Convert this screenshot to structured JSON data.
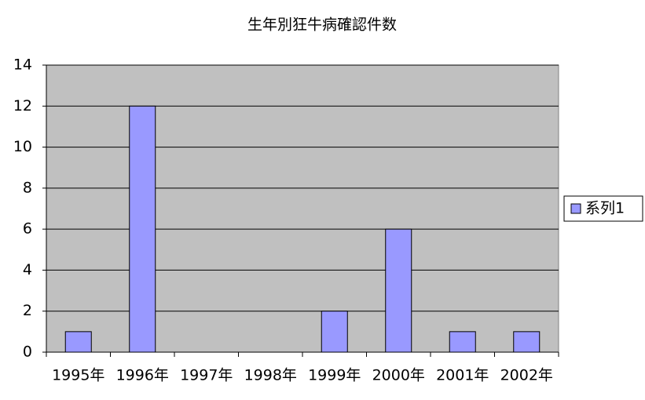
{
  "chart_data": {
    "type": "bar",
    "title": "生年別狂牛病確認件数",
    "categories": [
      "1995年",
      "1996年",
      "1997年",
      "1998年",
      "1999年",
      "2000年",
      "2001年",
      "2002年"
    ],
    "series": [
      {
        "name": "系列1",
        "color": "#9999ff",
        "values": [
          1,
          12,
          0,
          0,
          2,
          6,
          1,
          1
        ]
      }
    ],
    "ylim": [
      0,
      14
    ],
    "yticks": [
      0,
      2,
      4,
      6,
      8,
      10,
      12,
      14
    ],
    "grid": true,
    "legend": "right",
    "plot_background": "#c0c0c0"
  }
}
